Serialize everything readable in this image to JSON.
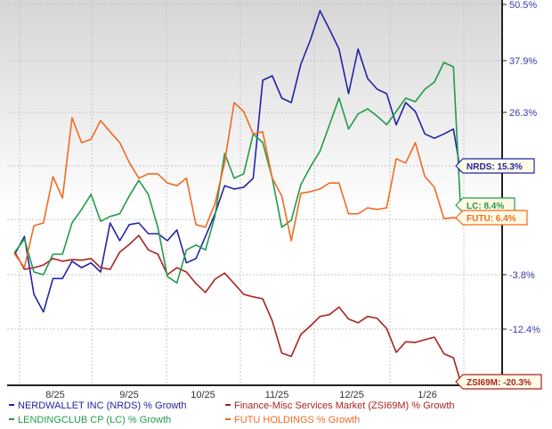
{
  "chart_data": {
    "type": "line",
    "title": "",
    "xlabel": "",
    "ylabel": "",
    "y_scale": "log-growth",
    "y_axis_position": "right",
    "y_ticks": [
      "50.5%",
      "37.9%",
      "26.3%",
      "-3.8%",
      "-12.4%"
    ],
    "y_tick_values": [
      50.5,
      37.9,
      26.3,
      -3.8,
      -12.4
    ],
    "x_ticks": [
      "8/25",
      "9/25",
      "10/25",
      "11/25",
      "12/25",
      "1/26"
    ],
    "grid": true,
    "legend_position": "bottom",
    "x": [
      "2025-07-30",
      "2025-08-03",
      "2025-08-07",
      "2025-08-11",
      "2025-08-15",
      "2025-08-19",
      "2025-08-23",
      "2025-08-27",
      "2025-08-31",
      "2025-09-04",
      "2025-09-08",
      "2025-09-12",
      "2025-09-16",
      "2025-09-20",
      "2025-09-24",
      "2025-09-28",
      "2025-10-02",
      "2025-10-06",
      "2025-10-10",
      "2025-10-14",
      "2025-10-18",
      "2025-10-22",
      "2025-10-26",
      "2025-10-30",
      "2025-11-03",
      "2025-11-07",
      "2025-11-11",
      "2025-11-15",
      "2025-11-19",
      "2025-11-23",
      "2025-11-27",
      "2025-12-01",
      "2025-12-05",
      "2025-12-09",
      "2025-12-13",
      "2025-12-17",
      "2025-12-21",
      "2025-12-25",
      "2025-12-29",
      "2026-01-02",
      "2026-01-06",
      "2026-01-10",
      "2026-01-14",
      "2026-01-18",
      "2026-01-22",
      "2026-01-26",
      "2026-01-30",
      "2026-02-02"
    ],
    "series": [
      {
        "name": "NERDWALLET INC (NRDS) % Growth",
        "color": "#2323a8",
        "end_label": "NRDS: 15.3%",
        "values": [
          0.0,
          3.3,
          -6.9,
          -9.7,
          -4.4,
          -4.4,
          -1.3,
          -2.5,
          -1.6,
          -3.3,
          5.8,
          2.5,
          5.5,
          5.8,
          3.8,
          3.8,
          2.5,
          4.5,
          -1.6,
          -0.8,
          3.3,
          7.5,
          12.7,
          12.1,
          12.4,
          14.1,
          33.5,
          34.5,
          29.5,
          28.5,
          37.1,
          42.5,
          49.1,
          44.9,
          40.5,
          30.5,
          40.5,
          33.9,
          31.5,
          30.5,
          24.0,
          28.5,
          26.5,
          22.3,
          21.5,
          22.3,
          23.2,
          15.3
        ]
      },
      {
        "name": "Finance-Misc Services Market (ZSI69M) % Growth",
        "color": "#a82323",
        "end_label": "ZSI69M: -20.3%",
        "values": [
          0.4,
          -2.8,
          -2.5,
          -2.0,
          -0.8,
          -1.3,
          -1.0,
          -1.1,
          -0.8,
          -2.5,
          -2.8,
          0.4,
          1.8,
          3.5,
          0.8,
          0.0,
          -3.8,
          -2.5,
          -3.3,
          -5.2,
          -6.6,
          -4.5,
          -3.5,
          -5.2,
          -6.9,
          -7.3,
          -7.6,
          -11.1,
          -16.0,
          -16.5,
          -13.2,
          -11.9,
          -10.4,
          -10.1,
          -8.9,
          -10.8,
          -11.4,
          -10.4,
          -10.7,
          -12.3,
          -15.9,
          -14.3,
          -14.4,
          -14.0,
          -13.6,
          -16.1,
          -16.7,
          -20.3
        ]
      },
      {
        "name": "LENDINGCLUB CP (LC) % Growth",
        "color": "#239b4a",
        "end_label": "LC: 8.4%",
        "values": [
          0.4,
          2.8,
          -3.3,
          -3.8,
          0.0,
          0.0,
          5.8,
          8.3,
          11.1,
          6.1,
          7.0,
          7.5,
          10.8,
          13.7,
          11.1,
          5.0,
          -4.1,
          -5.1,
          0.8,
          1.7,
          0.8,
          7.1,
          18.7,
          14.1,
          14.9,
          22.3,
          20.7,
          14.1,
          5.0,
          6.3,
          12.9,
          16.2,
          19.1,
          24.0,
          29.5,
          23.2,
          26.0,
          27.1,
          25.6,
          24.0,
          26.5,
          29.5,
          28.7,
          31.5,
          33.1,
          37.5,
          36.5,
          8.4
        ]
      },
      {
        "name": "FUTU HOLDINGS % Growth",
        "color": "#f26a21",
        "end_label": "FUTU: 6.4%",
        "values": [
          0.0,
          -2.5,
          5.3,
          5.8,
          14.4,
          10.4,
          25.3,
          20.7,
          21.3,
          24.8,
          22.7,
          20.7,
          17.0,
          14.1,
          14.9,
          14.9,
          13.2,
          12.7,
          14.1,
          5.5,
          5.0,
          9.4,
          17.0,
          28.5,
          26.5,
          22.3,
          22.7,
          14.1,
          10.8,
          2.5,
          11.3,
          11.6,
          12.1,
          13.2,
          13.2,
          7.5,
          7.5,
          8.6,
          8.3,
          8.6,
          17.7,
          16.9,
          20.7,
          14.4,
          12.4,
          6.6,
          6.8,
          6.4
        ]
      }
    ]
  }
}
